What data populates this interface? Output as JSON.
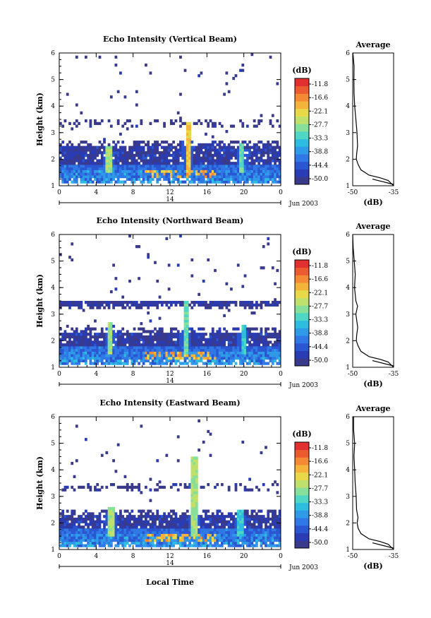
{
  "colormap": [
    "#3a3a8c",
    "#2a3cb4",
    "#2a56d2",
    "#2f78e6",
    "#2e9ae8",
    "#2ebde0",
    "#4fd6c4",
    "#86e09a",
    "#bfe06a",
    "#e8d94a",
    "#f4b43c",
    "#f48a34",
    "#ec5a30",
    "#e23030"
  ],
  "colorbar": {
    "unit_label": "(dB)",
    "ticks": [
      "-11.8",
      "-16.6",
      "-22.1",
      "-27.7",
      "-33.3",
      "-38.8",
      "-44.4",
      "-50.0"
    ]
  },
  "date_label": "Jun 2003",
  "day_label": "14",
  "xlabel": "Local Time",
  "ylabel": "Height (km)",
  "avg_title": "Average",
  "avg_xlabel": "(dB)",
  "chart_data": [
    {
      "type": "heatmap",
      "title": "Echo Intensity (Vertical Beam)",
      "xlabel": "",
      "ylabel": "Height (km)",
      "x_ticks": [
        "0",
        "4",
        "8",
        "12",
        "16",
        "20",
        "0"
      ],
      "y_ticks": [
        "1",
        "2",
        "3",
        "4",
        "5",
        "6"
      ],
      "xlim": [
        0,
        24
      ],
      "ylim": [
        1,
        6
      ],
      "value_range": [
        -50.0,
        -11.8
      ],
      "fill_top_km": 2.5,
      "spikes": [
        {
          "t": 5.3,
          "h": 2.5,
          "v": -30
        },
        {
          "t": 13.8,
          "h": 3.4,
          "v": -25
        },
        {
          "t": 19.7,
          "h": 2.6,
          "v": -33
        }
      ],
      "avg_profile": {
        "title": "Average",
        "xlabel": "(dB)",
        "x_ticks": [
          "-50",
          "-35"
        ],
        "xlim": [
          -50,
          -35
        ],
        "heights": [
          1.0,
          1.2,
          1.3,
          1.4,
          1.6,
          1.8,
          2.0,
          2.2,
          2.5,
          3.0,
          3.5,
          4.0,
          4.5,
          5.0,
          5.5,
          6.0
        ],
        "values": [
          -35,
          -37,
          -40,
          -44,
          -47,
          -48,
          -48.5,
          -48.3,
          -48.2,
          -48.7,
          -49,
          -49.2,
          -49.3,
          -49.5,
          -49.7,
          -49.9
        ]
      }
    },
    {
      "type": "heatmap",
      "title": "Echo Intensity (Northward Beam)",
      "xlabel": "",
      "ylabel": "Height (km)",
      "x_ticks": [
        "0",
        "4",
        "8",
        "12",
        "16",
        "20",
        "0"
      ],
      "y_ticks": [
        "1",
        "2",
        "3",
        "4",
        "5",
        "6"
      ],
      "xlim": [
        0,
        24
      ],
      "ylim": [
        1,
        6
      ],
      "value_range": [
        -50.0,
        -11.8
      ],
      "fill_top_km": 2.3,
      "layer_km": [
        3.3,
        3.5
      ],
      "spikes": [
        {
          "t": 5.4,
          "h": 2.7,
          "v": -30
        },
        {
          "t": 13.6,
          "h": 3.5,
          "v": -33
        },
        {
          "t": 19.8,
          "h": 2.6,
          "v": -36
        }
      ],
      "avg_profile": {
        "title": "Average",
        "xlabel": "(dB)",
        "x_ticks": [
          "-50",
          "-35"
        ],
        "xlim": [
          -50,
          -35
        ],
        "heights": [
          1.0,
          1.2,
          1.3,
          1.4,
          1.6,
          1.8,
          2.0,
          2.2,
          2.5,
          3.0,
          3.3,
          3.5,
          4.0,
          4.5,
          5.0,
          5.5,
          6.0
        ],
        "values": [
          -35,
          -37,
          -40,
          -44,
          -47,
          -48,
          -48.4,
          -48.3,
          -48.2,
          -48.6,
          -48.2,
          -48.8,
          -49.1,
          -49.3,
          -49.5,
          -49.7,
          -49.9
        ]
      }
    },
    {
      "type": "heatmap",
      "title": "Echo Intensity (Eastward Beam)",
      "xlabel": "Local Time",
      "ylabel": "Height (km)",
      "x_ticks": [
        "0",
        "4",
        "8",
        "12",
        "16",
        "20",
        "0"
      ],
      "y_ticks": [
        "1",
        "2",
        "3",
        "4",
        "5",
        "6"
      ],
      "xlim": [
        0,
        24
      ],
      "ylim": [
        1,
        6
      ],
      "value_range": [
        -50.0,
        -11.8
      ],
      "fill_top_km": 2.3,
      "spikes": [
        {
          "t": 5.5,
          "h": 2.6,
          "v": -30
        },
        {
          "t": 14.5,
          "h": 4.5,
          "v": -30
        },
        {
          "t": 19.5,
          "h": 2.5,
          "v": -36
        }
      ],
      "avg_profile": {
        "title": "Average",
        "xlabel": "(dB)",
        "x_ticks": [
          "-50",
          "-35"
        ],
        "xlim": [
          -50,
          -35
        ],
        "heights": [
          1.0,
          1.2,
          1.3,
          1.4,
          1.6,
          1.8,
          2.0,
          2.2,
          2.5,
          3.0,
          3.5,
          4.0,
          4.5,
          5.0,
          5.5,
          6.0
        ],
        "values": [
          -35,
          -37,
          -40,
          -44,
          -47,
          -48,
          -48.4,
          -48.3,
          -48.3,
          -48.7,
          -49,
          -49.1,
          -49.3,
          -49.5,
          -49.7,
          -49.9
        ]
      }
    }
  ]
}
